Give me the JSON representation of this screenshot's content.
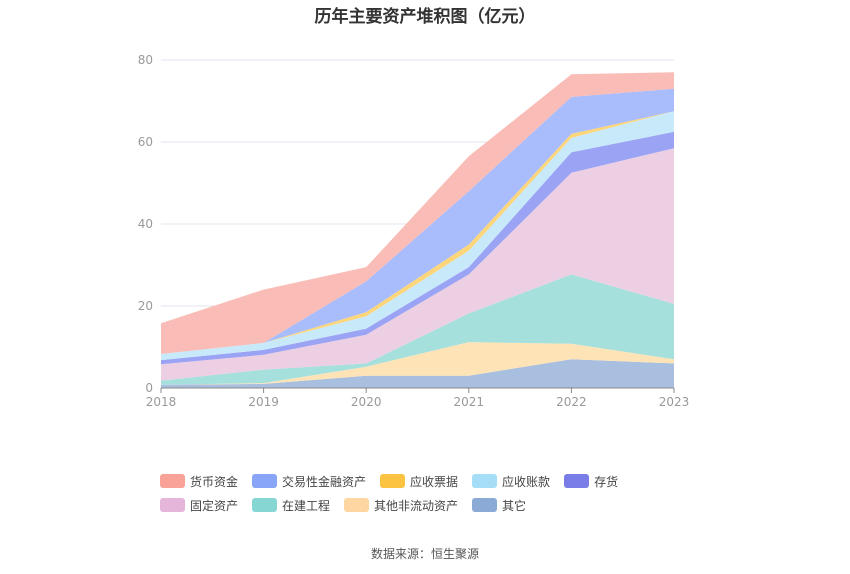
{
  "chart_data": {
    "type": "area",
    "stacked": true,
    "title": "历年主要资产堆积图（亿元）",
    "x": [
      "2018",
      "2019",
      "2020",
      "2021",
      "2022",
      "2023"
    ],
    "ylim": [
      0,
      80
    ],
    "yticks": [
      "0",
      "20",
      "40",
      "60",
      "80"
    ],
    "grid": true,
    "legend_position": "bottom",
    "series": [
      {
        "name": "其它",
        "color": "#a8bfdf",
        "values": [
          0.8,
          1.0,
          3.0,
          3.0,
          7.0,
          6.0
        ]
      },
      {
        "name": "其他非流动资产",
        "color": "#fde3b6",
        "values": [
          0.0,
          0.2,
          2.2,
          8.2,
          3.8,
          1.0
        ]
      },
      {
        "name": "在建工程",
        "color": "#a6e0dd",
        "values": [
          1.0,
          3.3,
          0.8,
          7.0,
          16.9,
          13.5
        ]
      },
      {
        "name": "固定资产",
        "color": "#edcfe4",
        "values": [
          4.0,
          3.6,
          7.0,
          9.5,
          24.8,
          38.0
        ]
      },
      {
        "name": "存货",
        "color": "#9aa3f4",
        "values": [
          1.0,
          1.2,
          1.5,
          1.8,
          5.0,
          4.0
        ]
      },
      {
        "name": "应收账款",
        "color": "#c8e9fa",
        "values": [
          1.5,
          1.7,
          3.0,
          4.0,
          3.5,
          5.0
        ]
      },
      {
        "name": "应收票据",
        "color": "#fdd67c",
        "values": [
          0.0,
          0.0,
          1.0,
          1.5,
          1.0,
          0.0
        ]
      },
      {
        "name": "交易性金融资产",
        "color": "#a9bcfb",
        "values": [
          0.0,
          0.0,
          7.5,
          13.0,
          9.0,
          5.5
        ]
      },
      {
        "name": "货币资金",
        "color": "#f9bcb6",
        "values": [
          7.5,
          13.0,
          3.5,
          8.5,
          5.5,
          4.0
        ]
      }
    ]
  },
  "legend": {
    "items": [
      {
        "label": "货币资金",
        "color": "#f9a297"
      },
      {
        "label": "交易性金融资产",
        "color": "#89a5f7"
      },
      {
        "label": "应收票据",
        "color": "#fbc341"
      },
      {
        "label": "应收账款",
        "color": "#a6ddf7"
      },
      {
        "label": "存货",
        "color": "#7a7de8"
      },
      {
        "label": "固定资产",
        "color": "#e6b6da"
      },
      {
        "label": "在建工程",
        "color": "#86d7d3"
      },
      {
        "label": "其他非流动资产",
        "color": "#fdd6a1"
      },
      {
        "label": "其它",
        "color": "#8caad6"
      }
    ]
  },
  "source": "数据来源：恒生聚源"
}
